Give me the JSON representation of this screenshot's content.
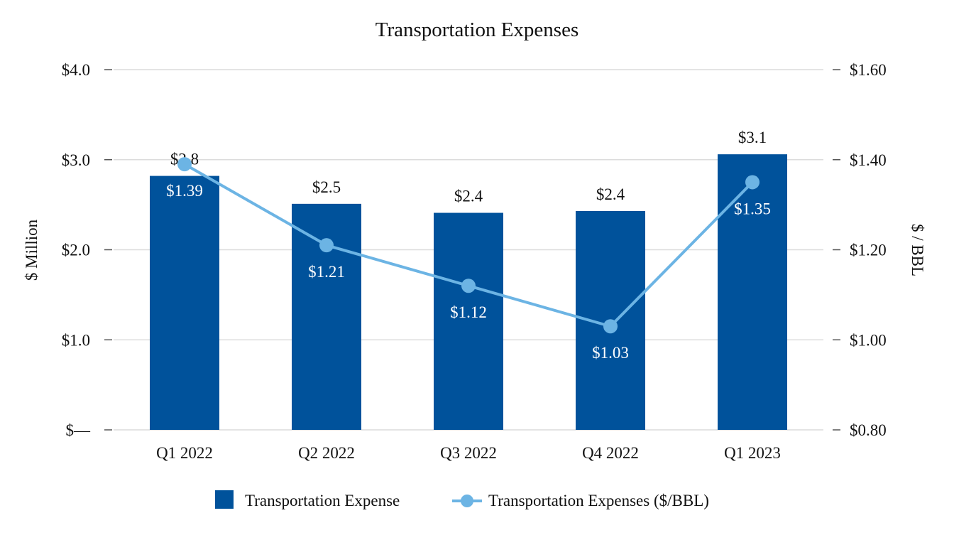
{
  "chart_data": {
    "type": "bar+line",
    "title": "Transportation Expenses",
    "categories": [
      "Q1 2022",
      "Q2 2022",
      "Q3 2022",
      "Q4 2022",
      "Q1 2023"
    ],
    "series": [
      {
        "name": "Transportation Expense",
        "type": "bar",
        "axis": "left",
        "color": "#00529b",
        "values": [
          2.82,
          2.51,
          2.41,
          2.43,
          3.06
        ],
        "labels": [
          "$2.8",
          "$2.5",
          "$2.4",
          "$2.4",
          "$3.1"
        ]
      },
      {
        "name": "Transportation Expenses ($/BBL)",
        "type": "line",
        "axis": "right",
        "color": "#6cb4e4",
        "values": [
          1.39,
          1.21,
          1.12,
          1.03,
          1.35
        ],
        "labels": [
          "$1.39",
          "$1.21",
          "$1.12",
          "$1.03",
          "$1.35"
        ]
      }
    ],
    "left_axis": {
      "label": "$ Million",
      "range": [
        0,
        4
      ],
      "ticks": [
        0,
        1,
        2,
        3,
        4
      ],
      "tick_labels": [
        "$—",
        "$1.0",
        "$2.0",
        "$3.0",
        "$4.0"
      ]
    },
    "right_axis": {
      "label": "$ / BBL",
      "range": [
        0.8,
        1.6
      ],
      "ticks": [
        0.8,
        1.0,
        1.2,
        1.4,
        1.6
      ],
      "tick_labels": [
        "$0.80",
        "$1.00",
        "$1.20",
        "$1.40",
        "$1.60"
      ]
    },
    "grid": true,
    "legend_position": "bottom-center"
  }
}
